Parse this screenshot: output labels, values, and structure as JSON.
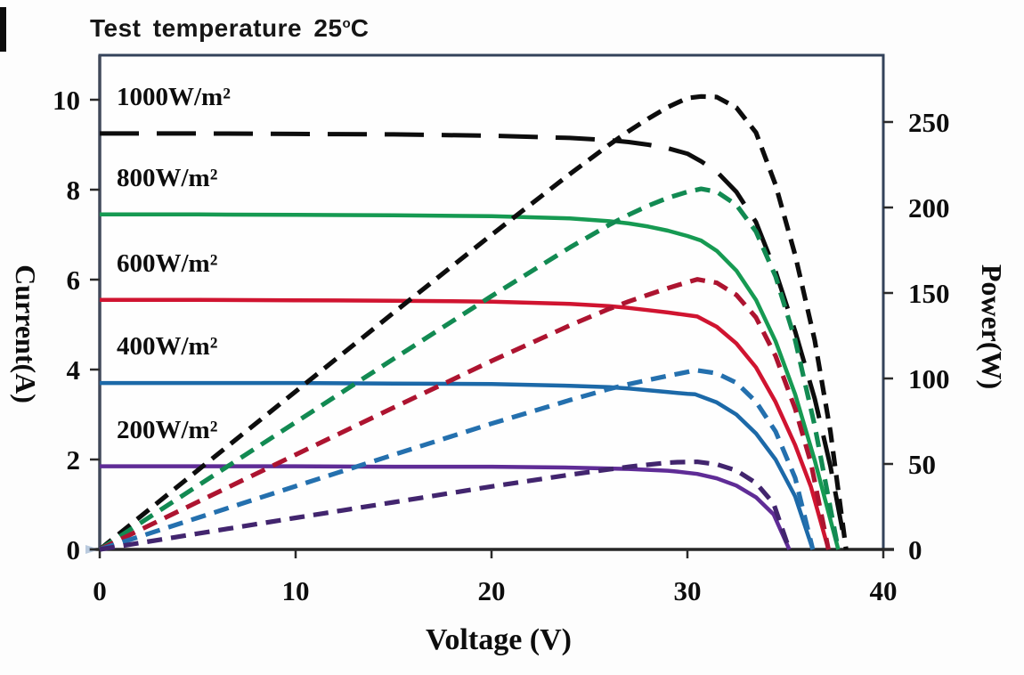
{
  "title": {
    "text_before_sup": "Test temperature 25",
    "sup": "o",
    "text_after_sup": "C"
  },
  "chart_data": {
    "type": "line",
    "title": "Test temperature 25°C",
    "xlabel": "Voltage (V)",
    "ylabel_left": "Current(A)",
    "ylabel_right": "Power(W)",
    "xlim": [
      0,
      40
    ],
    "ylim_left": [
      0,
      10
    ],
    "ylim_right": [
      0,
      250
    ],
    "xticks": [
      "0",
      "10",
      "20",
      "30",
      "40"
    ],
    "yticks_left": [
      "0",
      "2",
      "4",
      "6",
      "8",
      "10"
    ],
    "yticks_right": [
      "0",
      "50",
      "100",
      "150",
      "200",
      "250"
    ],
    "grid": false,
    "legend": "inline-labels-above-each-isc-line",
    "curve_semantics": "Each irradiance level has an I-V curve (left axis, solid; 1000 W/m2 uses long dashes) and a P-V curve (right axis, short dashes) where P = V x I",
    "series": [
      {
        "label": "1000W/m²",
        "irradiance_w_m2": 1000,
        "iv_color": "#0d0d0d",
        "pv_color": "#0d0d0d",
        "iv_style": "long-dash",
        "pv_style": "short-dash",
        "isc_a": 9.25,
        "voc_v": 38.1,
        "vmp_v": 30.7,
        "pmp_w": 265,
        "iv_points": [
          [
            0,
            9.25
          ],
          [
            5,
            9.25
          ],
          [
            10,
            9.24
          ],
          [
            15,
            9.23
          ],
          [
            20,
            9.2
          ],
          [
            24,
            9.15
          ],
          [
            26,
            9.1
          ],
          [
            27,
            9.06
          ],
          [
            28,
            9.0
          ],
          [
            29,
            8.92
          ],
          [
            30,
            8.8
          ],
          [
            30.7,
            8.63
          ],
          [
            31.5,
            8.4
          ],
          [
            32.5,
            7.95
          ],
          [
            33.5,
            7.28
          ],
          [
            34.5,
            6.18
          ],
          [
            35.5,
            4.85
          ],
          [
            36.5,
            3.35
          ],
          [
            37.3,
            1.85
          ],
          [
            38.1,
            0
          ]
        ]
      },
      {
        "label": "800W/m²",
        "irradiance_w_m2": 800,
        "iv_color": "#169a52",
        "pv_color": "#128a52",
        "iv_style": "solid",
        "pv_style": "short-dash",
        "isc_a": 7.45,
        "voc_v": 37.7,
        "vmp_v": 30.7,
        "pmp_w": 211,
        "iv_points": [
          [
            0,
            7.45
          ],
          [
            5,
            7.45
          ],
          [
            10,
            7.44
          ],
          [
            15,
            7.43
          ],
          [
            20,
            7.41
          ],
          [
            24,
            7.36
          ],
          [
            26,
            7.3
          ],
          [
            27,
            7.25
          ],
          [
            28,
            7.18
          ],
          [
            29,
            7.09
          ],
          [
            30,
            6.97
          ],
          [
            30.7,
            6.87
          ],
          [
            31.5,
            6.64
          ],
          [
            32.5,
            6.2
          ],
          [
            33.5,
            5.55
          ],
          [
            34.5,
            4.63
          ],
          [
            35.5,
            3.45
          ],
          [
            36.5,
            1.98
          ],
          [
            37.7,
            0
          ]
        ]
      },
      {
        "label": "600W/m²",
        "irradiance_w_m2": 600,
        "iv_color": "#d01430",
        "pv_color": "#ad1430",
        "iv_style": "solid",
        "pv_style": "short-dash",
        "isc_a": 5.55,
        "voc_v": 37.2,
        "vmp_v": 30.5,
        "pmp_w": 158,
        "iv_points": [
          [
            0,
            5.55
          ],
          [
            5,
            5.55
          ],
          [
            10,
            5.54
          ],
          [
            15,
            5.53
          ],
          [
            20,
            5.51
          ],
          [
            24,
            5.46
          ],
          [
            26,
            5.41
          ],
          [
            27,
            5.37
          ],
          [
            28,
            5.32
          ],
          [
            29,
            5.27
          ],
          [
            30,
            5.21
          ],
          [
            30.5,
            5.18
          ],
          [
            31.5,
            4.95
          ],
          [
            32.5,
            4.58
          ],
          [
            33.5,
            4.05
          ],
          [
            34.5,
            3.28
          ],
          [
            35.5,
            2.32
          ],
          [
            36.3,
            1.4
          ],
          [
            37.2,
            0
          ]
        ]
      },
      {
        "label": "400W/m²",
        "irradiance_w_m2": 400,
        "iv_color": "#1c69a8",
        "pv_color": "#2470ae",
        "iv_style": "solid",
        "pv_style": "short-dash",
        "isc_a": 3.7,
        "voc_v": 36.4,
        "vmp_v": 30.4,
        "pmp_w": 105,
        "iv_points": [
          [
            0,
            3.7
          ],
          [
            5,
            3.7
          ],
          [
            10,
            3.7
          ],
          [
            15,
            3.69
          ],
          [
            20,
            3.68
          ],
          [
            24,
            3.64
          ],
          [
            26,
            3.61
          ],
          [
            27,
            3.58
          ],
          [
            28,
            3.54
          ],
          [
            29,
            3.5
          ],
          [
            30,
            3.46
          ],
          [
            30.4,
            3.45
          ],
          [
            31.5,
            3.27
          ],
          [
            32.5,
            3.0
          ],
          [
            33.5,
            2.58
          ],
          [
            34.5,
            2.0
          ],
          [
            35.5,
            1.18
          ],
          [
            36.4,
            0
          ]
        ]
      },
      {
        "label": "200W/m²",
        "irradiance_w_m2": 200,
        "iv_color": "#5f2c96",
        "pv_color": "#42256e",
        "iv_style": "solid",
        "pv_style": "short-dash",
        "isc_a": 1.85,
        "voc_v": 35.2,
        "vmp_v": 29.5,
        "pmp_w": 51,
        "iv_points": [
          [
            0,
            1.85
          ],
          [
            5,
            1.85
          ],
          [
            10,
            1.85
          ],
          [
            15,
            1.84
          ],
          [
            20,
            1.84
          ],
          [
            24,
            1.82
          ],
          [
            26,
            1.8
          ],
          [
            27,
            1.79
          ],
          [
            28,
            1.77
          ],
          [
            29,
            1.75
          ],
          [
            29.5,
            1.73
          ],
          [
            30.5,
            1.68
          ],
          [
            31.5,
            1.58
          ],
          [
            32.5,
            1.42
          ],
          [
            33.5,
            1.16
          ],
          [
            34.4,
            0.78
          ],
          [
            35.2,
            0
          ]
        ]
      }
    ]
  }
}
